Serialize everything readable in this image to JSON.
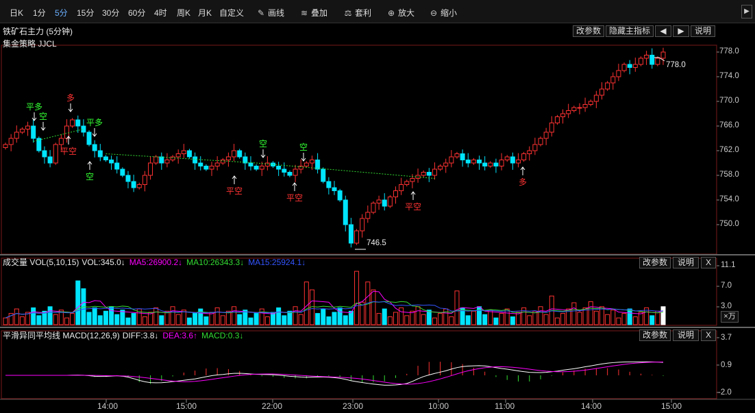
{
  "toolbar": {
    "periods": [
      "日K",
      "1分",
      "5分",
      "15分",
      "30分",
      "60分",
      "4时",
      "周K",
      "月K",
      "自定义"
    ],
    "active_period": "5分",
    "tools": [
      {
        "label": "画线",
        "icon": "pen-icon"
      },
      {
        "label": "叠加",
        "icon": "stack-icon"
      },
      {
        "label": "套利",
        "icon": "arbitrage-icon"
      },
      {
        "label": "放大",
        "icon": "zoom-in-icon"
      },
      {
        "label": "缩小",
        "icon": "zoom-out-icon"
      }
    ]
  },
  "main": {
    "title": "铁矿石主力 (5分钟)",
    "strategy": "集金策略 JJCL",
    "buttons": [
      "改参数",
      "隐藏主指标",
      "◀",
      "▶",
      "说明"
    ],
    "y_ticks": [
      "778.0",
      "774.0",
      "770.0",
      "766.0",
      "762.0",
      "758.0",
      "754.0",
      "750.0"
    ],
    "high_label": "778.0",
    "low_label": "746.5",
    "signals": [
      {
        "text": "平多",
        "color": "#33ff33"
      },
      {
        "text": "空",
        "color": "#33ff33"
      },
      {
        "text": "多",
        "color": "#ff3333"
      },
      {
        "text": "平多",
        "color": "#33ff33"
      },
      {
        "text": "平空",
        "color": "#ff3333"
      },
      {
        "text": "空",
        "color": "#33ff33"
      },
      {
        "text": "平空",
        "color": "#ff3333"
      },
      {
        "text": "空",
        "color": "#33ff33"
      },
      {
        "text": "平空",
        "color": "#ff3333"
      },
      {
        "text": "空",
        "color": "#33ff33"
      },
      {
        "text": "平空",
        "color": "#ff3333"
      },
      {
        "text": "多",
        "color": "#ff3333"
      }
    ]
  },
  "volume": {
    "name": "成交量 VOL(5,10,15)",
    "vol": "VOL:345.0↓",
    "ma5": "MA5:26900.2↓",
    "ma10": "MA10:26343.3↓",
    "ma15": "MA15:25924.1↓",
    "buttons": [
      "改参数",
      "说明",
      "X"
    ],
    "y_ticks": [
      "11.1",
      "7.0",
      "3.0"
    ],
    "unit": "×万"
  },
  "macd": {
    "name": "平滑异同平均线 MACD(12,26,9)",
    "diff": "DIFF:3.8↓",
    "dea": "DEA:3.6↑",
    "macd": "MACD:0.3↓",
    "buttons": [
      "改参数",
      "说明",
      "X"
    ],
    "y_ticks": [
      "3.7",
      "0.9",
      "-2.0"
    ]
  },
  "time_axis": [
    "14:00",
    "15:00",
    "22:00",
    "23:00",
    "10:00",
    "11:00",
    "14:00",
    "15:00"
  ],
  "colors": {
    "up": "#ff3232",
    "down": "#00e5ff",
    "ma5": "#ff00ff",
    "ma10": "#33dd33",
    "ma15": "#3355ff"
  }
}
